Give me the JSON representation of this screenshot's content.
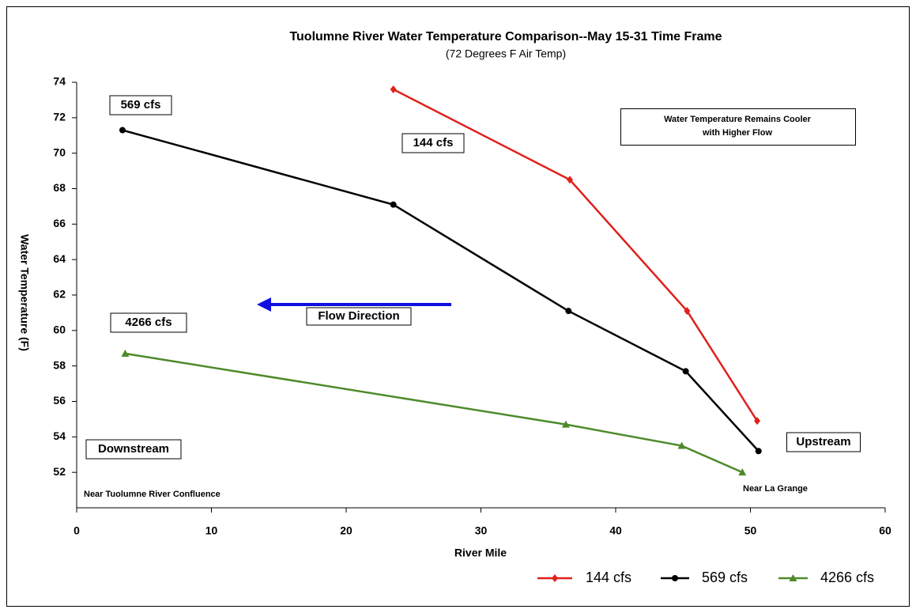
{
  "chart_data": {
    "type": "line",
    "title": "Tuolumne River Water Temperature Comparison--May 15-31 Time Frame",
    "subtitle": "(72 Degrees F Air Temp)",
    "x_label": "River Mile",
    "y_label": "Water Temperature (F)",
    "xlim": [
      0,
      60
    ],
    "xticks": [
      0,
      10,
      20,
      30,
      40,
      50,
      60
    ],
    "ylim": [
      50,
      74
    ],
    "yticks": [
      52,
      54,
      56,
      58,
      60,
      62,
      64,
      66,
      68,
      70,
      72,
      74
    ],
    "grid": false,
    "legend": "bottom",
    "series": [
      {
        "name": "144 cfs",
        "color": "#e0201c",
        "marker": "diamond",
        "x": [
          23.5,
          36.6,
          45.3,
          50.5
        ],
        "values": [
          73.6,
          68.5,
          61.1,
          54.9
        ]
      },
      {
        "name": "569 cfs",
        "color": "#000000",
        "marker": "circle",
        "x": [
          3.4,
          23.5,
          36.5,
          45.2,
          50.6
        ],
        "values": [
          71.3,
          67.1,
          61.1,
          57.7,
          53.2
        ]
      },
      {
        "name": "4266 cfs",
        "color": "#4e8a2a",
        "marker": "triangle",
        "x": [
          3.6,
          36.3,
          44.9,
          49.4
        ],
        "values": [
          58.7,
          54.7,
          53.5,
          52.0
        ]
      }
    ],
    "annotations": [
      "569 cfs",
      "144 cfs",
      "4266 cfs",
      "Flow Direction",
      "Downstream",
      "Upstream",
      "Near Tuolumne River Confluence",
      "Near La Grange"
    ],
    "note_box": [
      "Water Temperature Remains Cooler",
      "with Higher Flow"
    ]
  }
}
